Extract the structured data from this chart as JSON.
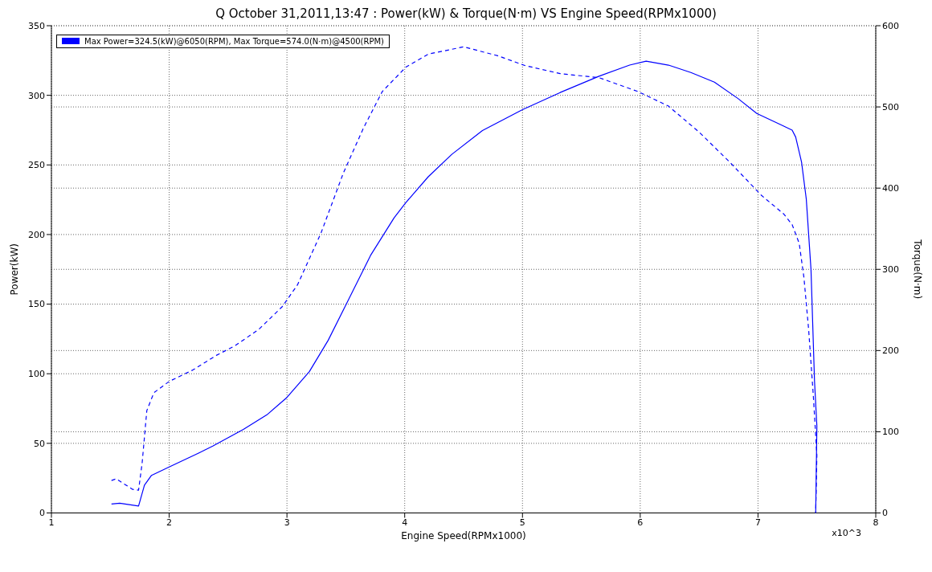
{
  "chart_data": {
    "type": "line",
    "title": "Q October 31,2011,13:47  : Power(kW) & Torque(N·m) VS Engine Speed(RPMx1000)",
    "xlabel": "Engine Speed(RPMx1000)",
    "ylabel": "Power(kW)",
    "y2label": "Torque(N·m)",
    "xlim": [
      1,
      8
    ],
    "xticks": [
      1,
      2,
      3,
      4,
      5,
      6,
      7,
      8
    ],
    "ylim": [
      0,
      350
    ],
    "yticks": [
      0,
      50,
      100,
      150,
      200,
      250,
      300,
      350
    ],
    "y2lim": [
      0,
      600
    ],
    "y2ticks": [
      0,
      100,
      200,
      300,
      400,
      500,
      600
    ],
    "grid": true,
    "legend": "top left",
    "marker": "none",
    "annotations": [
      "x10^3"
    ],
    "series": [
      {
        "name": "Max Power=324.5(kW)@6050(RPM), Max Torque=574.0(N·m)@4500(RPM)",
        "color": "#0000ff",
        "line_style": "solid",
        "x": [
          1.51,
          1.58,
          1.74,
          1.79,
          1.85,
          2.0,
          2.25,
          2.37,
          2.63,
          2.83,
          3.0,
          3.19,
          3.35,
          3.51,
          3.71,
          3.91,
          4.01,
          4.2,
          4.4,
          4.66,
          5.0,
          5.32,
          5.65,
          5.91,
          6.05,
          6.24,
          6.43,
          6.63,
          6.83,
          6.99,
          7.19,
          7.29,
          7.32,
          7.37,
          7.41,
          7.45,
          7.48,
          7.5,
          7.49
        ],
        "values": [
          6.4,
          7,
          5,
          20,
          27,
          33,
          43,
          48,
          60,
          70.5,
          83,
          101.5,
          124,
          151,
          185,
          212,
          223,
          241.5,
          257.6,
          274.7,
          289.7,
          302,
          313.7,
          321.7,
          324.5,
          321.7,
          316.4,
          309.5,
          297.7,
          287,
          279,
          275,
          270,
          252,
          225.5,
          175,
          94.6,
          62.5,
          0
        ]
      },
      {
        "color": "#0000ff",
        "line_style": "dashed",
        "axis": "y2",
        "x": [
          1.51,
          1.55,
          1.69,
          1.74,
          1.77,
          1.81,
          1.87,
          2.0,
          2.2,
          2.4,
          2.56,
          2.76,
          2.96,
          3.09,
          3.29,
          3.48,
          3.65,
          3.81,
          4.01,
          4.2,
          4.5,
          4.79,
          5.02,
          5.32,
          5.65,
          5.98,
          6.24,
          6.5,
          6.76,
          7.03,
          7.22,
          7.29,
          7.35,
          7.39,
          7.43,
          7.47,
          7.5,
          7.49
        ],
        "values": [
          40,
          42,
          29,
          28,
          61,
          126,
          148,
          162,
          176,
          194,
          206,
          226,
          254,
          281,
          345,
          419,
          474,
          519,
          549,
          565,
          574,
          563,
          551,
          541,
          536,
          519,
          501,
          469,
          432,
          391,
          368,
          355,
          332,
          290,
          226,
          144,
          71,
          0
        ]
      }
    ]
  }
}
